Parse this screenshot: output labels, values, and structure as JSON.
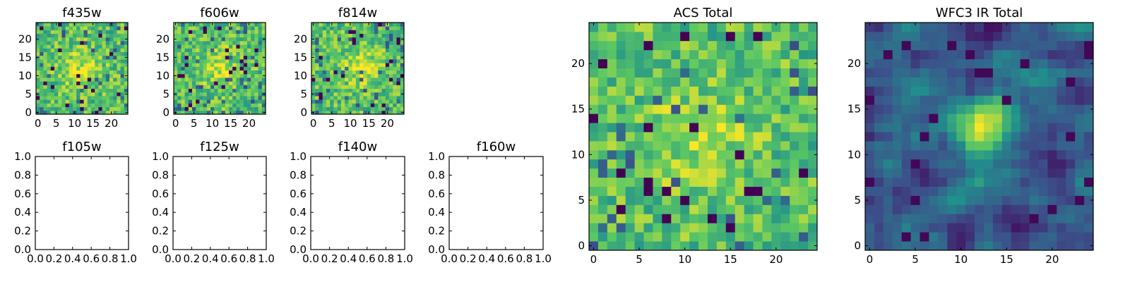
{
  "colormap": "viridis",
  "colors": {
    "axis": "#000000",
    "background": "#ffffff",
    "viridis_stops": [
      "#440154",
      "#3b528b",
      "#21918c",
      "#5ec962",
      "#fde725"
    ]
  },
  "chart_data": [
    {
      "type": "heatmap",
      "title": "f435w",
      "shape": [
        25,
        25
      ],
      "xlim": [
        -0.5,
        24.5
      ],
      "ylim": [
        -0.5,
        24.5
      ],
      "xticks": [
        0,
        5,
        10,
        15,
        20
      ],
      "yticks": [
        0,
        5,
        10,
        15,
        20
      ],
      "xticklabels": [
        "0",
        "5",
        "10",
        "15",
        "20"
      ],
      "yticklabels": [
        "0",
        "5",
        "10",
        "15",
        "20"
      ],
      "colormap": "viridis",
      "pattern": "noise",
      "hot_center": [
        12,
        12
      ],
      "seed": 11
    },
    {
      "type": "heatmap",
      "title": "f606w",
      "shape": [
        25,
        25
      ],
      "xlim": [
        -0.5,
        24.5
      ],
      "ylim": [
        -0.5,
        24.5
      ],
      "xticks": [
        0,
        5,
        10,
        15,
        20
      ],
      "yticks": [
        0,
        5,
        10,
        15,
        20
      ],
      "xticklabels": [
        "0",
        "5",
        "10",
        "15",
        "20"
      ],
      "yticklabels": [
        "0",
        "5",
        "10",
        "15",
        "20"
      ],
      "colormap": "viridis",
      "pattern": "noise",
      "hot_center": [
        12,
        12
      ],
      "seed": 23
    },
    {
      "type": "heatmap",
      "title": "f814w",
      "shape": [
        25,
        25
      ],
      "xlim": [
        -0.5,
        24.5
      ],
      "ylim": [
        -0.5,
        24.5
      ],
      "xticks": [
        0,
        5,
        10,
        15,
        20
      ],
      "yticks": [
        0,
        5,
        10,
        15,
        20
      ],
      "xticklabels": [
        "0",
        "5",
        "10",
        "15",
        "20"
      ],
      "yticklabels": [
        "0",
        "5",
        "10",
        "15",
        "20"
      ],
      "colormap": "viridis",
      "pattern": "noise",
      "hot_center": [
        13,
        12
      ],
      "seed": 37
    },
    {
      "type": "line",
      "title": "f105w",
      "series": [],
      "xlim": [
        0,
        1
      ],
      "ylim": [
        0,
        1
      ],
      "xticklabels": [
        "0.0",
        "0.2",
        "0.4",
        "0.6",
        "0.8",
        "1.0"
      ],
      "yticklabels": [
        "0.0",
        "0.2",
        "0.4",
        "0.6",
        "0.8",
        "1.0"
      ]
    },
    {
      "type": "line",
      "title": "f125w",
      "series": [],
      "xlim": [
        0,
        1
      ],
      "ylim": [
        0,
        1
      ],
      "xticklabels": [
        "0.0",
        "0.2",
        "0.4",
        "0.6",
        "0.8",
        "1.0"
      ],
      "yticklabels": [
        "0.0",
        "0.2",
        "0.4",
        "0.6",
        "0.8",
        "1.0"
      ]
    },
    {
      "type": "line",
      "title": "f140w",
      "series": [],
      "xlim": [
        0,
        1
      ],
      "ylim": [
        0,
        1
      ],
      "xticklabels": [
        "0.0",
        "0.2",
        "0.4",
        "0.6",
        "0.8",
        "1.0"
      ],
      "yticklabels": [
        "0.0",
        "0.2",
        "0.4",
        "0.6",
        "0.8",
        "1.0"
      ]
    },
    {
      "type": "line",
      "title": "f160w",
      "series": [],
      "xlim": [
        0,
        1
      ],
      "ylim": [
        0,
        1
      ],
      "xticklabels": [
        "0.0",
        "0.2",
        "0.4",
        "0.6",
        "0.8",
        "1.0"
      ],
      "yticklabels": [
        "0.0",
        "0.2",
        "0.4",
        "0.6",
        "0.8",
        "1.0"
      ]
    },
    {
      "type": "heatmap",
      "title": "ACS Total",
      "shape": [
        25,
        25
      ],
      "xlim": [
        -0.5,
        24.5
      ],
      "ylim": [
        -0.5,
        24.5
      ],
      "xticks": [
        0,
        5,
        10,
        15,
        20
      ],
      "yticks": [
        0,
        5,
        10,
        15,
        20
      ],
      "xticklabels": [
        "0",
        "5",
        "10",
        "15",
        "20"
      ],
      "yticklabels": [
        "0",
        "5",
        "10",
        "15",
        "20"
      ],
      "colormap": "viridis",
      "pattern": "noise",
      "hot_center": [
        12,
        12
      ],
      "seed": 53
    },
    {
      "type": "heatmap",
      "title": "WFC3 IR Total",
      "shape": [
        25,
        25
      ],
      "xlim": [
        -0.5,
        24.5
      ],
      "ylim": [
        -0.5,
        24.5
      ],
      "xticks": [
        0,
        5,
        10,
        15,
        20
      ],
      "yticks": [
        0,
        5,
        10,
        15,
        20
      ],
      "xticklabels": [
        "0",
        "5",
        "10",
        "15",
        "20"
      ],
      "yticklabels": [
        "0",
        "5",
        "10",
        "15",
        "20"
      ],
      "colormap": "viridis",
      "pattern": "source",
      "source_center": [
        13,
        13
      ],
      "seed": 71
    }
  ]
}
